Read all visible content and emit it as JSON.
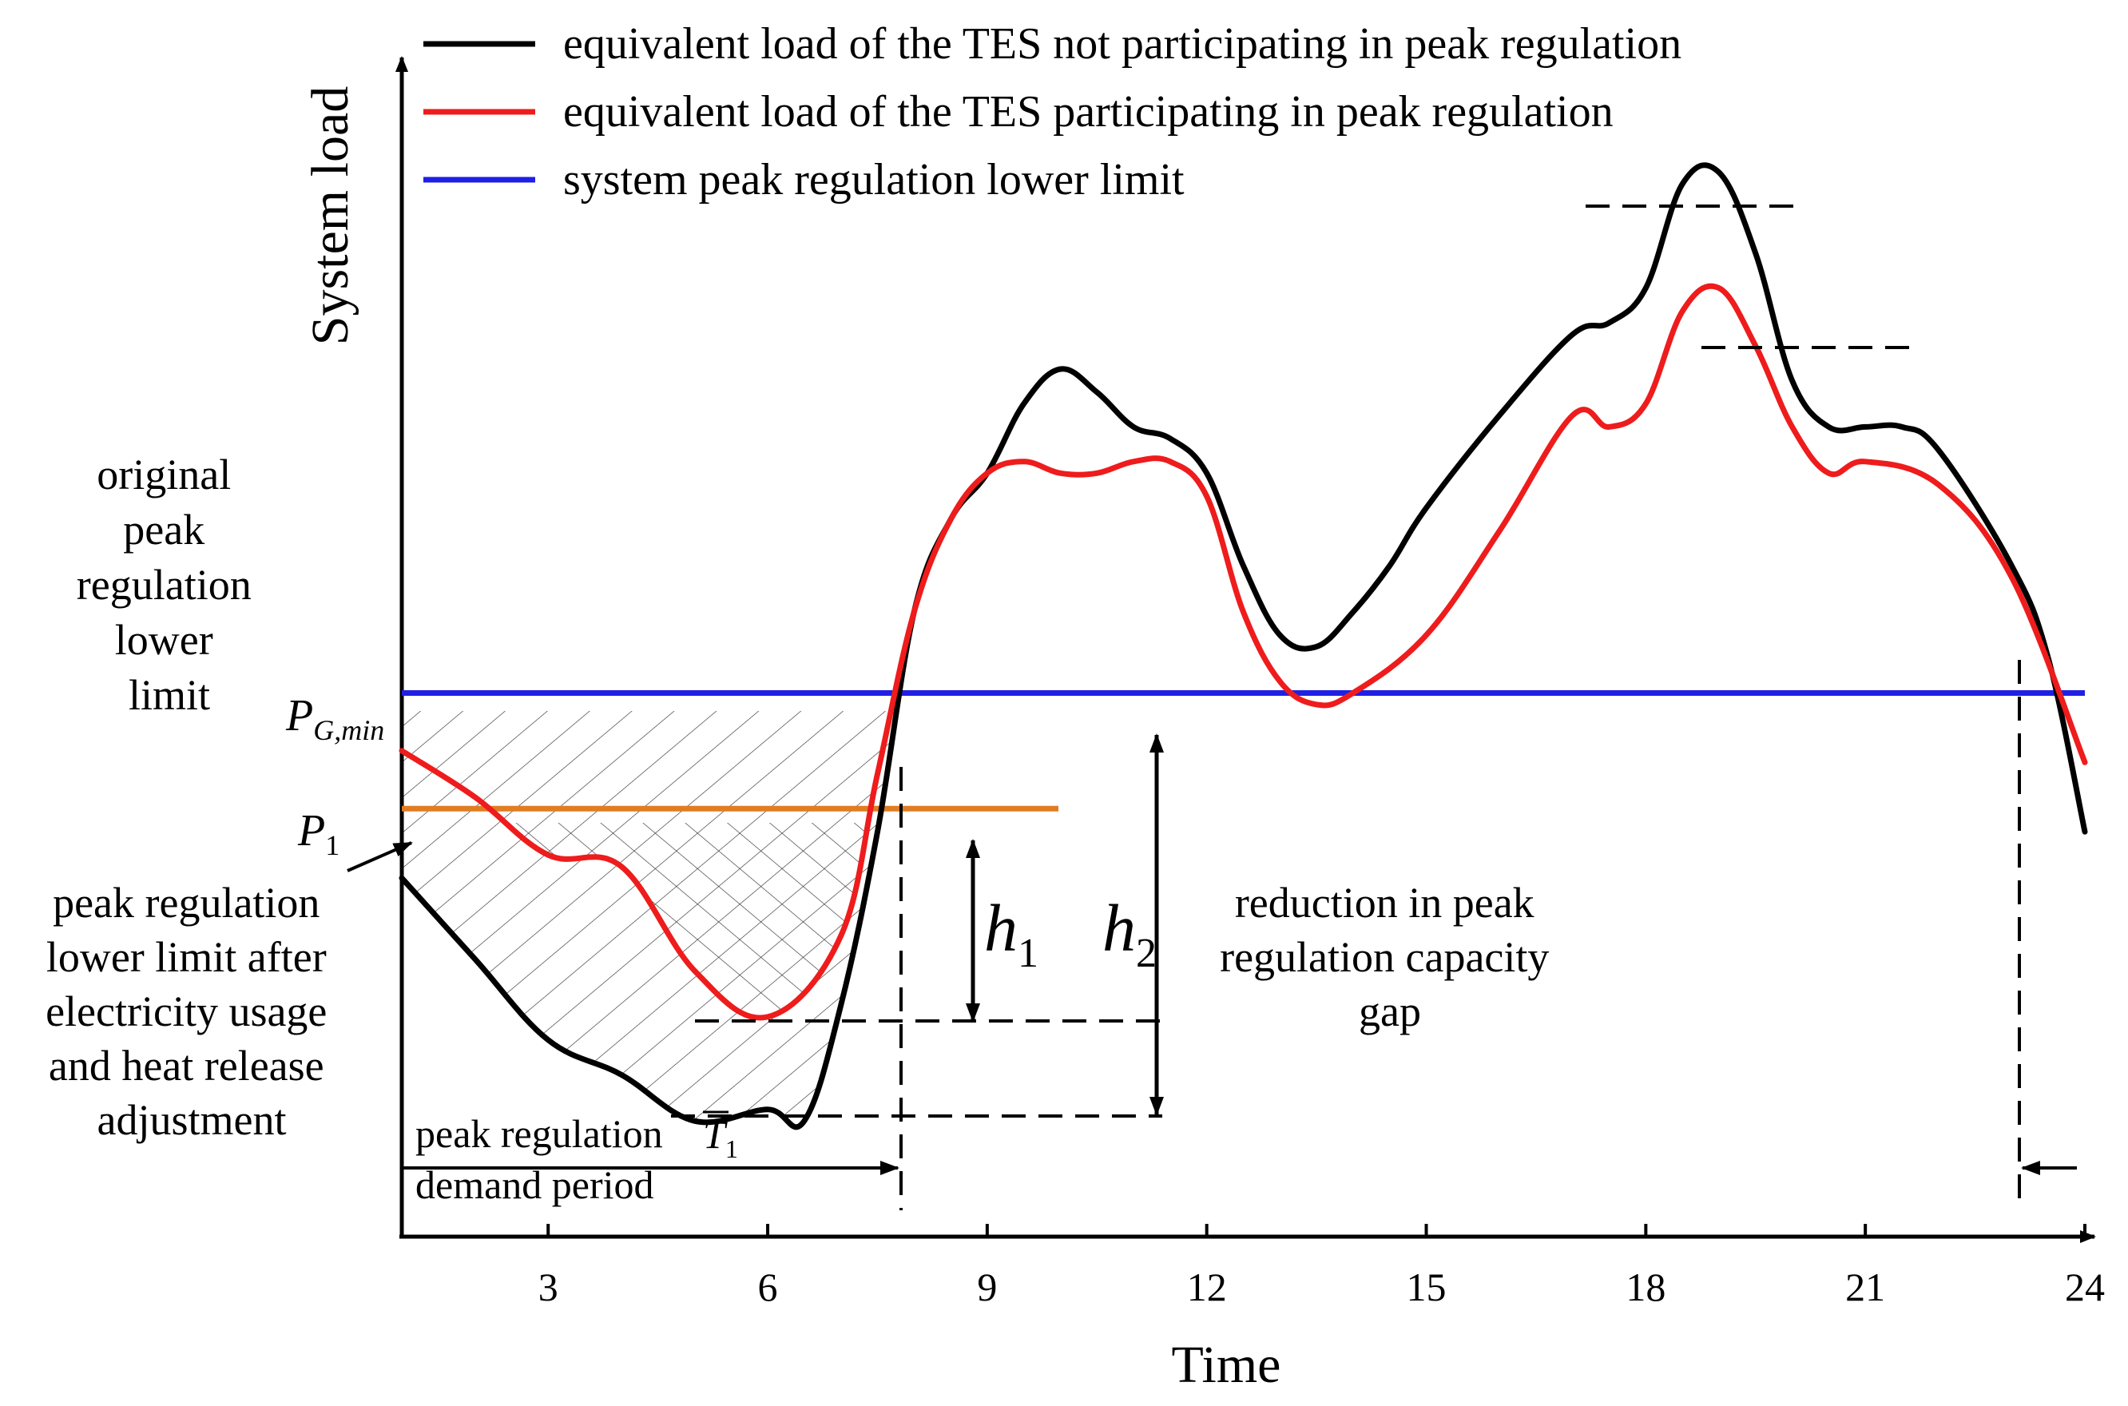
{
  "chart_data": {
    "type": "line",
    "title": "",
    "xlabel": "Time",
    "ylabel": "System load",
    "xlim": [
      1,
      24
    ],
    "ylim": [
      0,
      100
    ],
    "x_ticks": [
      3,
      6,
      9,
      12,
      15,
      18,
      21,
      24
    ],
    "grid": false,
    "legend_position": "top",
    "colors": {
      "black": "#000000",
      "red": "#ee1c1c",
      "blue": "#1f1fe6",
      "orange": "#e07d22"
    },
    "series": [
      {
        "name": "equivalent load of the TES not participating in peak regulation",
        "color": "#000000",
        "points": [
          [
            1,
            31
          ],
          [
            2,
            24
          ],
          [
            3,
            17
          ],
          [
            4,
            14
          ],
          [
            5,
            10
          ],
          [
            6,
            11
          ],
          [
            6.5,
            10
          ],
          [
            7,
            20
          ],
          [
            7.5,
            35
          ],
          [
            8,
            54
          ],
          [
            8.5,
            62
          ],
          [
            9,
            66
          ],
          [
            9.5,
            72
          ],
          [
            10,
            75
          ],
          [
            10.5,
            73
          ],
          [
            11,
            70
          ],
          [
            11.5,
            69
          ],
          [
            12,
            66
          ],
          [
            12.5,
            58
          ],
          [
            13,
            52
          ],
          [
            13.5,
            51
          ],
          [
            14,
            54
          ],
          [
            14.5,
            58
          ],
          [
            15,
            63
          ],
          [
            16,
            71
          ],
          [
            17,
            78
          ],
          [
            17.5,
            79
          ],
          [
            18,
            82
          ],
          [
            18.5,
            91
          ],
          [
            19,
            92
          ],
          [
            19.5,
            85
          ],
          [
            20,
            74
          ],
          [
            20.5,
            70
          ],
          [
            21,
            70
          ],
          [
            21.5,
            70
          ],
          [
            22,
            68
          ],
          [
            23,
            58
          ],
          [
            23.5,
            50
          ],
          [
            24,
            35
          ]
        ]
      },
      {
        "name": "equivalent load of the TES participating in peak regulation",
        "color": "#ee1c1c",
        "points": [
          [
            1,
            42
          ],
          [
            2,
            38
          ],
          [
            3,
            33
          ],
          [
            4,
            32
          ],
          [
            5,
            23
          ],
          [
            6,
            19
          ],
          [
            7,
            26
          ],
          [
            7.5,
            40
          ],
          [
            8,
            54
          ],
          [
            8.5,
            62
          ],
          [
            9,
            66
          ],
          [
            9.5,
            67
          ],
          [
            10,
            66
          ],
          [
            10.5,
            66
          ],
          [
            11,
            67
          ],
          [
            11.5,
            67
          ],
          [
            12,
            64
          ],
          [
            12.5,
            54
          ],
          [
            13,
            48
          ],
          [
            13.5,
            46
          ],
          [
            14,
            47
          ],
          [
            15,
            52
          ],
          [
            16,
            61
          ],
          [
            17,
            71
          ],
          [
            17.5,
            70
          ],
          [
            18,
            72
          ],
          [
            18.5,
            80
          ],
          [
            19,
            82
          ],
          [
            19.5,
            77
          ],
          [
            20,
            70
          ],
          [
            20.5,
            66
          ],
          [
            21,
            67
          ],
          [
            22,
            65
          ],
          [
            23,
            57
          ],
          [
            24,
            41
          ]
        ]
      }
    ],
    "legend": [
      {
        "label": "equivalent load of the TES not participating in peak regulation",
        "color": "#000000"
      },
      {
        "label": "equivalent load of the TES participating in peak regulation",
        "color": "#ee1c1c"
      },
      {
        "label": "system peak regulation lower limit",
        "color": "#1f1fe6"
      }
    ],
    "reference_lines": {
      "P_G_min": 47,
      "P_1": 37
    },
    "labels": {
      "pg_main": "P",
      "pg_sub": "G,min",
      "p1_main": "P",
      "p1_sub": "1",
      "h1_main": "h",
      "h1_sub": "1",
      "h2_main": "h",
      "h2_sub": "2",
      "t1_main": "T",
      "t1_sub": "1"
    },
    "annotations": {
      "original_limit": [
        "original",
        "peak",
        "regulation",
        "lower",
        "limit"
      ],
      "after_adjustment": [
        "peak regulation",
        "lower limit after",
        "electricity usage",
        "and heat release",
        "adjustment"
      ],
      "reduction_gap": [
        "reduction in peak",
        "regulation capacity",
        "gap"
      ],
      "demand_period": [
        "peak regulation",
        "demand period"
      ]
    }
  }
}
